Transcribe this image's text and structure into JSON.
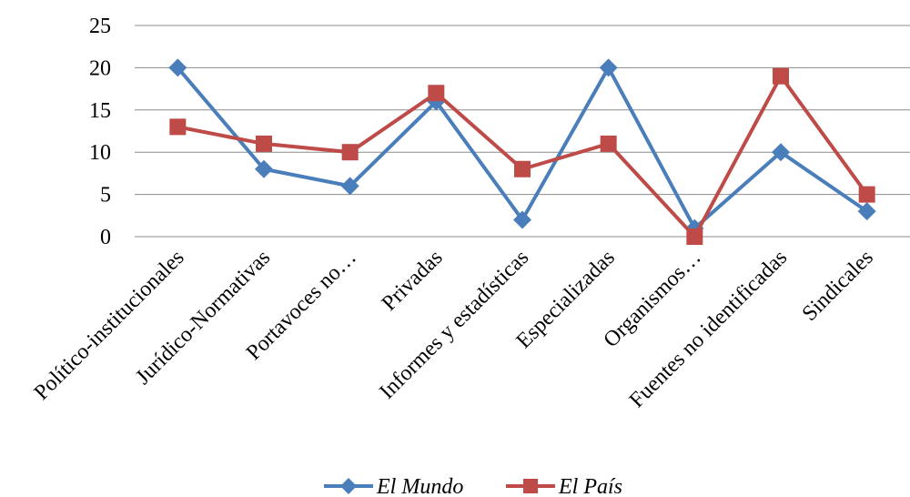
{
  "chart_data": {
    "type": "line",
    "categories": [
      "Político-institucionales",
      "Jurídico-Normativas",
      "Portavoces no…",
      "Privadas",
      "Informes y estadísticas",
      "Especializadas",
      "Organismos…",
      "Fuentes no identificadas",
      "Sindicales"
    ],
    "series": [
      {
        "name": "El Mundo",
        "color": "#4A7EBB",
        "marker": "diamond",
        "values": [
          20,
          8,
          6,
          16,
          2,
          20,
          1,
          10,
          3
        ]
      },
      {
        "name": "El País",
        "color": "#BE4B48",
        "marker": "square",
        "values": [
          13,
          11,
          10,
          17,
          8,
          11,
          0,
          19,
          5
        ]
      }
    ],
    "ylim": [
      0,
      25
    ],
    "yticks": [
      0,
      5,
      10,
      15,
      20,
      25
    ],
    "grid": true,
    "legend_position": "bottom"
  }
}
